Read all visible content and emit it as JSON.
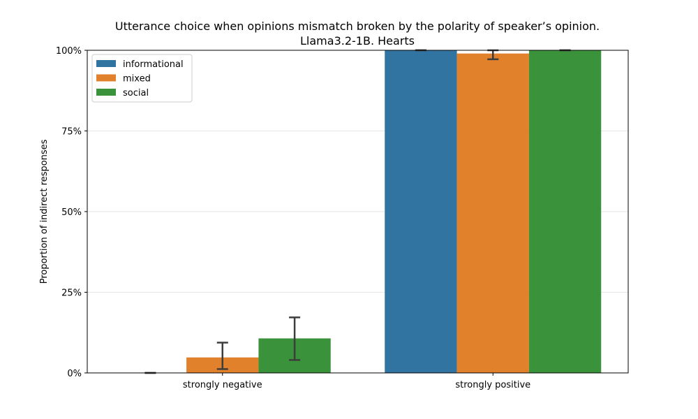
{
  "chart_data": {
    "type": "bar",
    "title": "Utterance choice when opinions mismatch broken by the polarity of speaker’s opinion.",
    "subtitle": "Llama3.2-1B. Hearts",
    "xlabel": "",
    "ylabel": "Proportion of indirect responses",
    "categories": [
      "strongly negative",
      "strongly positive"
    ],
    "series": [
      {
        "name": "informational",
        "color": "#3274a1",
        "values": [
          0.0,
          1.0
        ],
        "err_low": [
          0.0,
          1.0
        ],
        "err_high": [
          0.0,
          1.0
        ]
      },
      {
        "name": "mixed",
        "color": "#e1812c",
        "values": [
          0.048,
          0.99
        ],
        "err_low": [
          0.012,
          0.972
        ],
        "err_high": [
          0.094,
          1.0
        ]
      },
      {
        "name": "social",
        "color": "#3a923a",
        "values": [
          0.107,
          1.0
        ],
        "err_low": [
          0.04,
          1.0
        ],
        "err_high": [
          0.172,
          1.0
        ]
      }
    ],
    "ylim": [
      0,
      1
    ],
    "yticks": [
      0,
      0.25,
      0.5,
      0.75,
      1.0
    ],
    "ytick_labels": [
      "0%",
      "25%",
      "50%",
      "75%",
      "100%"
    ],
    "grid": true,
    "legend_position": "top-left"
  }
}
